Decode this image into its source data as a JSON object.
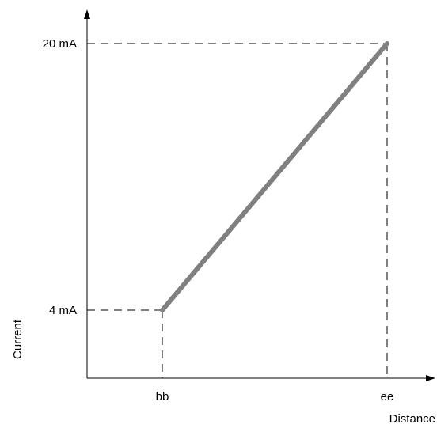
{
  "chart_data": {
    "type": "line",
    "title": "",
    "xlabel": "Distance",
    "ylabel": "Current",
    "grid": false,
    "legend": "none",
    "x_ticks": [
      "bb",
      "ee"
    ],
    "y_ticks": [
      "4 mA",
      "20 mA"
    ],
    "y_tick_values": [
      4,
      20
    ],
    "ylim": [
      0,
      24
    ],
    "series": [
      {
        "x": [
          "bb",
          "ee"
        ],
        "y": [
          4,
          20
        ],
        "color": "#808080"
      }
    ],
    "guides": "dashed lines from both end points to the axes"
  }
}
